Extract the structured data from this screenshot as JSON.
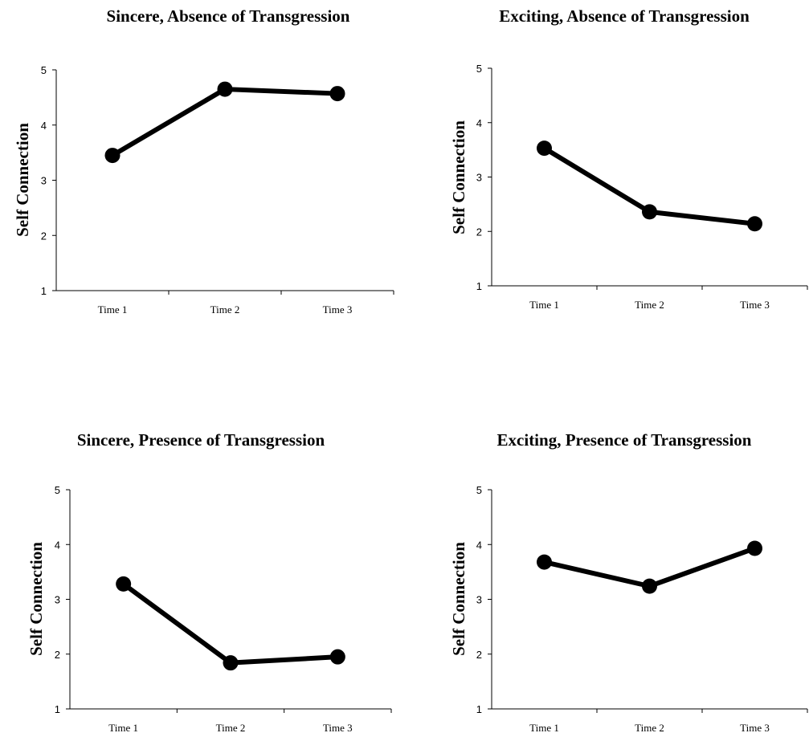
{
  "chart_data": [
    {
      "type": "line",
      "title": "Sincere, Absence of Transgression",
      "ylabel": "Self Connection",
      "xlabel": "",
      "categories": [
        "Time 1",
        "Time 2",
        "Time 3"
      ],
      "values": [
        3.45,
        4.65,
        4.57
      ],
      "ylim": [
        1,
        5
      ],
      "yticks": [
        "1",
        "2",
        "3",
        "4",
        "5"
      ],
      "grid": false,
      "legend": false
    },
    {
      "type": "line",
      "title": "Exciting, Absence of Transgression",
      "ylabel": "Self Connection",
      "xlabel": "",
      "categories": [
        "Time 1",
        "Time 2",
        "Time 3"
      ],
      "values": [
        3.53,
        2.36,
        2.14
      ],
      "ylim": [
        1,
        5
      ],
      "yticks": [
        "1",
        "2",
        "3",
        "4",
        "5"
      ],
      "grid": false,
      "legend": false
    },
    {
      "type": "line",
      "title": "Sincere, Presence of Transgression",
      "ylabel": "Self Connection",
      "xlabel": "",
      "categories": [
        "Time 1",
        "Time 2",
        "Time 3"
      ],
      "values": [
        3.28,
        1.84,
        1.95
      ],
      "ylim": [
        1,
        5
      ],
      "yticks": [
        "1",
        "2",
        "3",
        "4",
        "5"
      ],
      "grid": false,
      "legend": false
    },
    {
      "type": "line",
      "title": "Exciting, Presence of Transgression",
      "ylabel": "Self Connection",
      "xlabel": "",
      "categories": [
        "Time 1",
        "Time 2",
        "Time 3"
      ],
      "values": [
        3.68,
        3.24,
        3.93
      ],
      "ylim": [
        1,
        5
      ],
      "yticks": [
        "1",
        "2",
        "3",
        "4",
        "5"
      ],
      "grid": false,
      "legend": false
    }
  ]
}
